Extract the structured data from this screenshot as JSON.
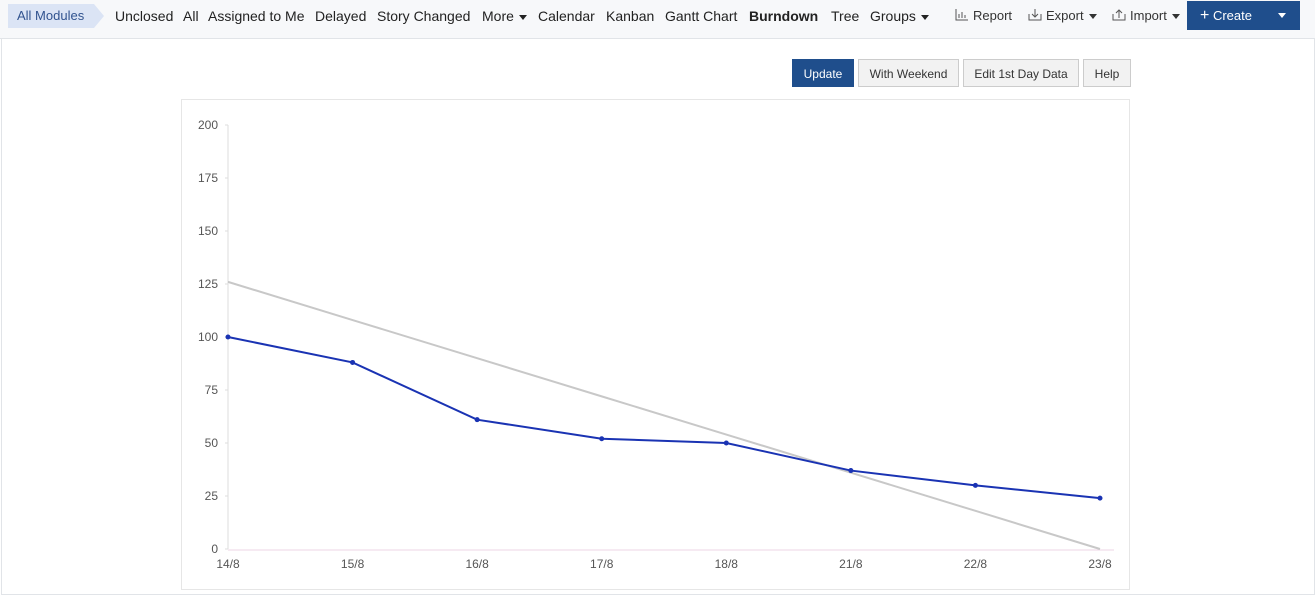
{
  "toolbar": {
    "breadcrumb": "All Modules",
    "tabs": [
      "Unclosed",
      "All",
      "Assigned to Me",
      "Delayed",
      "Story Changed",
      "More",
      "Calendar",
      "Kanban",
      "Gantt Chart",
      "Burndown",
      "Tree",
      "Groups"
    ],
    "actions": [
      "Report",
      "Export",
      "Import"
    ],
    "create": "Create"
  },
  "buttons": [
    "Update",
    "With Weekend",
    "Edit 1st Day Data",
    "Help"
  ],
  "chart_data": {
    "type": "line",
    "categories": [
      "14/8",
      "15/8",
      "16/8",
      "17/8",
      "18/8",
      "21/8",
      "22/8",
      "23/8"
    ],
    "series": [
      {
        "color": "#c8c8c8",
        "values": [
          126,
          108,
          90,
          72,
          54,
          36,
          18,
          0
        ]
      },
      {
        "color": "#1a33b3",
        "values": [
          100,
          88,
          61,
          52,
          50,
          37,
          30,
          24
        ],
        "marker": true
      }
    ],
    "ylim": [
      0,
      200
    ],
    "yticks": [
      0,
      25,
      50,
      75,
      100,
      125,
      150,
      175,
      200
    ]
  }
}
